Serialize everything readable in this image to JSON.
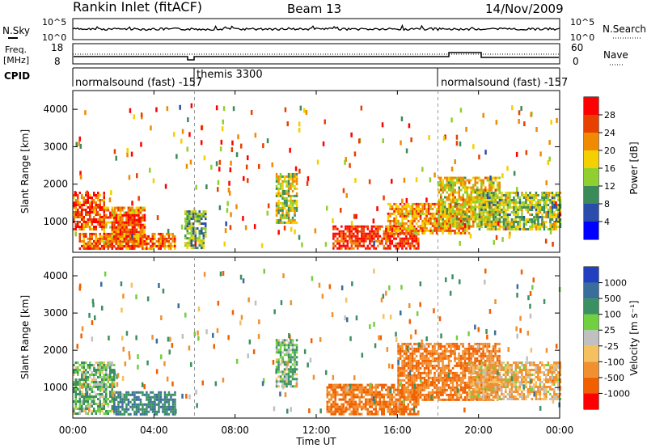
{
  "header": {
    "station": "Rankin Inlet (fitACF)",
    "beam": "Beam 13",
    "date": "14/Nov/2009"
  },
  "noise_panel": {
    "left_label": "N.Sky",
    "right_label": "N.Search",
    "left_ticks": [
      "10^5",
      "10^0"
    ],
    "right_ticks": [
      "10^5",
      "10^0"
    ]
  },
  "freq_panel": {
    "left_label_line1": "Freq.",
    "left_label_line2": "[MHz]",
    "right_label": "Nave",
    "left_ticks": [
      "18",
      "8"
    ],
    "right_ticks": [
      "60",
      "0"
    ]
  },
  "cpid_panel": {
    "label": "CPID",
    "segments": [
      {
        "text": "normalsound (fast) -157",
        "start_hour": 0
      },
      {
        "text": "themis 3300",
        "start_hour": 6
      },
      {
        "text": "normalsound (fast) -157",
        "start_hour": 18
      }
    ]
  },
  "x_axis": {
    "label": "Time UT",
    "ticks": [
      "00:00",
      "04:00",
      "08:00",
      "12:00",
      "16:00",
      "20:00",
      "00:00"
    ],
    "range_hours": [
      0,
      24
    ]
  },
  "power_panel": {
    "ylabel": "Slant Range [km]",
    "yticks": [
      "1000",
      "2000",
      "3000",
      "4000"
    ],
    "colorbar_label": "Power [dB]",
    "colorbar_ticks": [
      "4",
      "8",
      "12",
      "16",
      "20",
      "24",
      "28"
    ],
    "colors": [
      "#0000ff",
      "#2a4caa",
      "#3a8a5a",
      "#8fd030",
      "#f4d000",
      "#f08a00",
      "#e84000",
      "#ff0000"
    ]
  },
  "velocity_panel": {
    "ylabel": "Slant Range [km]",
    "yticks": [
      "1000",
      "2000",
      "3000",
      "4000"
    ],
    "colorbar_label": "Velocity [m s⁻¹]",
    "colorbar_ticks": [
      "1000",
      "500",
      "100",
      "25",
      "-25",
      "-100",
      "-500",
      "-1000"
    ],
    "colors": [
      "#2040c0",
      "#3a6e9a",
      "#3a9060",
      "#70d040",
      "#c0c0c0",
      "#f4c060",
      "#f09030",
      "#f06000",
      "#ff0000"
    ]
  },
  "chart_data": {
    "type": "heatmap",
    "x_range_hours": [
      0,
      24
    ],
    "y_range_km": [
      180,
      4500
    ],
    "scatter_regions_power": [
      {
        "t": [
          0.0,
          1.5
        ],
        "r": [
          800,
          1800
        ],
        "v": 26
      },
      {
        "t": [
          1.5,
          3.5
        ],
        "r": [
          300,
          1400
        ],
        "v": 22
      },
      {
        "t": [
          2.0,
          3.5
        ],
        "r": [
          600,
          1200
        ],
        "v": 28
      },
      {
        "t": [
          0.3,
          5.0
        ],
        "r": [
          250,
          700
        ],
        "v": 24
      },
      {
        "t": [
          5.5,
          6.5
        ],
        "r": [
          300,
          1300
        ],
        "v": 12
      },
      {
        "t": [
          10.0,
          11.0
        ],
        "r": [
          1000,
          2300
        ],
        "v": 16
      },
      {
        "t": [
          12.8,
          17.0
        ],
        "r": [
          300,
          900
        ],
        "v": 28
      },
      {
        "t": [
          15.5,
          19.5
        ],
        "r": [
          700,
          1500
        ],
        "v": 22
      },
      {
        "t": [
          18.0,
          21.0
        ],
        "r": [
          900,
          2200
        ],
        "v": 18
      },
      {
        "t": [
          20.0,
          24.0
        ],
        "r": [
          800,
          1800
        ],
        "v": 14
      }
    ],
    "scatter_regions_velocity": [
      {
        "t": [
          0.0,
          2.0
        ],
        "r": [
          300,
          1700
        ],
        "v": 100
      },
      {
        "t": [
          2.0,
          5.0
        ],
        "r": [
          250,
          900
        ],
        "v": 500
      },
      {
        "t": [
          10.0,
          11.0
        ],
        "r": [
          1000,
          2300
        ],
        "v": 100
      },
      {
        "t": [
          12.5,
          17.0
        ],
        "r": [
          300,
          1100
        ],
        "v": -500
      },
      {
        "t": [
          16.0,
          21.0
        ],
        "r": [
          700,
          2200
        ],
        "v": -500
      },
      {
        "t": [
          19.5,
          24.0
        ],
        "r": [
          700,
          1700
        ],
        "v": -100
      }
    ]
  }
}
